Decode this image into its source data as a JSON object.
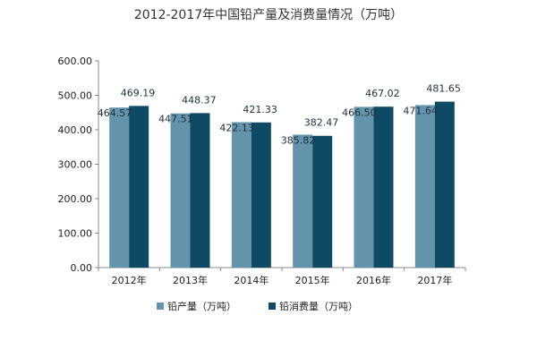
{
  "chart_data": {
    "type": "bar",
    "title": "2012-2017年中国铅产量及消费量情况（万吨）",
    "xlabel": "",
    "ylabel": "",
    "categories": [
      "2012年",
      "2013年",
      "2014年",
      "2015年",
      "2016年",
      "2017年"
    ],
    "series": [
      {
        "name": "铅产量（万吨）",
        "color": "#6494ab",
        "values": [
          464.57,
          447.51,
          422.13,
          385.82,
          466.5,
          471.64
        ],
        "labels": [
          "464.57",
          "447.51",
          "422.13",
          "385.82",
          "466.50",
          "471.64"
        ]
      },
      {
        "name": "铅消费量（万吨）",
        "color": "#0e4a63",
        "values": [
          469.19,
          448.37,
          421.33,
          382.47,
          467.02,
          481.65
        ],
        "labels": [
          "469.19",
          "448.37",
          "421.33",
          "382.47",
          "467.02",
          "481.65"
        ]
      }
    ],
    "ylim": [
      0,
      600
    ],
    "yticks": [
      0,
      100,
      200,
      300,
      400,
      500,
      600
    ],
    "ytick_labels": [
      "0.00",
      "100.00",
      "200.00",
      "300.00",
      "400.00",
      "500.00",
      "600.00"
    ],
    "grid": false,
    "legend_position": "bottom"
  }
}
